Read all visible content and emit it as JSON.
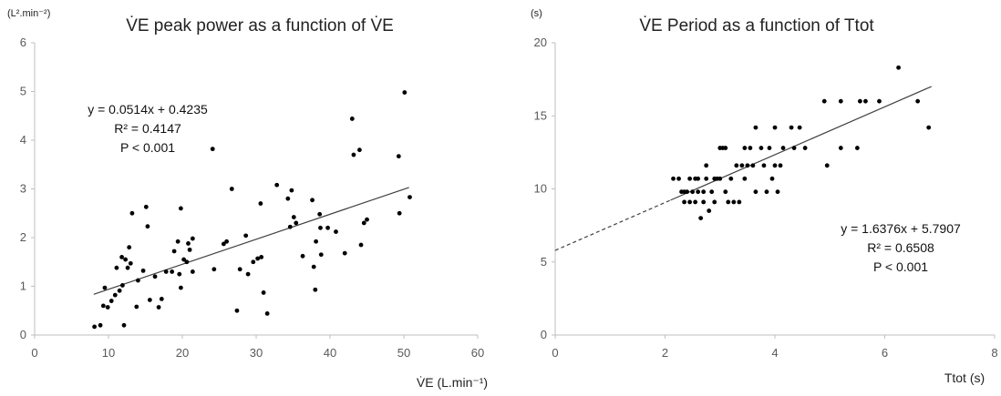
{
  "chart_data": [
    {
      "type": "scatter",
      "title": "V̇E peak power as a function of V̇E",
      "xlabel": "V̇E (L.min⁻¹)",
      "ylabel": "(L².min⁻²)",
      "xlim": [
        0,
        60
      ],
      "ylim": [
        0,
        6
      ],
      "xticks": [
        "0",
        "10",
        "20",
        "30",
        "40",
        "50",
        "60"
      ],
      "yticks": [
        "0",
        "1",
        "2",
        "3",
        "4",
        "5",
        "6"
      ],
      "grid": false,
      "trendline": {
        "slope": 0.0514,
        "intercept": 0.4235,
        "style": "solid",
        "x_range": [
          8,
          50.7
        ]
      },
      "annotation": [
        "y = 0.0514x + 0.4235",
        "R² = 0.4147",
        "P < 0.001"
      ],
      "points": [
        [
          8.1,
          0.17
        ],
        [
          8.9,
          0.2
        ],
        [
          9.3,
          0.6
        ],
        [
          9.5,
          0.97
        ],
        [
          9.9,
          0.57
        ],
        [
          10.4,
          0.7
        ],
        [
          10.9,
          0.82
        ],
        [
          11.1,
          1.38
        ],
        [
          11.5,
          0.91
        ],
        [
          11.8,
          1.6
        ],
        [
          11.9,
          1.02
        ],
        [
          12.1,
          0.2
        ],
        [
          12.3,
          1.55
        ],
        [
          12.6,
          1.38
        ],
        [
          12.8,
          1.8
        ],
        [
          13,
          1.47
        ],
        [
          13.2,
          2.5
        ],
        [
          13.8,
          0.58
        ],
        [
          14,
          1.12
        ],
        [
          14.7,
          1.32
        ],
        [
          15.1,
          2.63
        ],
        [
          15.3,
          2.23
        ],
        [
          15.6,
          0.72
        ],
        [
          16.3,
          1.2
        ],
        [
          16.8,
          0.57
        ],
        [
          17.2,
          0.74
        ],
        [
          17.8,
          1.3
        ],
        [
          18.6,
          1.3
        ],
        [
          18.9,
          1.72
        ],
        [
          19.4,
          1.92
        ],
        [
          19.6,
          1.25
        ],
        [
          19.8,
          0.97
        ],
        [
          19.8,
          2.6
        ],
        [
          20.2,
          1.55
        ],
        [
          20.6,
          1.5
        ],
        [
          20.8,
          1.88
        ],
        [
          21,
          1.75
        ],
        [
          21.4,
          1.3
        ],
        [
          21.4,
          1.98
        ],
        [
          24.1,
          3.82
        ],
        [
          24.3,
          1.35
        ],
        [
          25.6,
          1.87
        ],
        [
          26,
          1.92
        ],
        [
          26.7,
          3.0
        ],
        [
          27.4,
          0.5
        ],
        [
          27.8,
          1.35
        ],
        [
          28.6,
          2.04
        ],
        [
          28.9,
          1.25
        ],
        [
          29.6,
          1.5
        ],
        [
          30.2,
          1.57
        ],
        [
          30.6,
          2.7
        ],
        [
          30.7,
          1.6
        ],
        [
          31,
          0.87
        ],
        [
          31.5,
          0.44
        ],
        [
          32.8,
          3.08
        ],
        [
          34.3,
          2.8
        ],
        [
          34.6,
          2.22
        ],
        [
          34.8,
          2.97
        ],
        [
          35.1,
          2.42
        ],
        [
          35.4,
          2.3
        ],
        [
          36.3,
          1.62
        ],
        [
          37.6,
          2.77
        ],
        [
          37.8,
          1.4
        ],
        [
          38,
          0.93
        ],
        [
          38.1,
          1.92
        ],
        [
          38.6,
          2.48
        ],
        [
          38.7,
          2.2
        ],
        [
          38.8,
          1.65
        ],
        [
          39.7,
          2.2
        ],
        [
          40.8,
          2.12
        ],
        [
          42,
          1.68
        ],
        [
          43,
          4.44
        ],
        [
          43.2,
          3.7
        ],
        [
          44,
          3.8
        ],
        [
          44.2,
          1.85
        ],
        [
          44.6,
          2.3
        ],
        [
          45,
          2.37
        ],
        [
          49.3,
          3.67
        ],
        [
          49.4,
          2.5
        ],
        [
          50.1,
          4.98
        ],
        [
          50.8,
          2.83
        ]
      ]
    },
    {
      "type": "scatter",
      "title": "V̇E Period as  a function of Ttot",
      "xlabel": "Ttot (s)",
      "ylabel": "(s)",
      "xlim": [
        0,
        8
      ],
      "ylim": [
        0,
        20
      ],
      "xticks": [
        "0",
        "2",
        "4",
        "6",
        "8"
      ],
      "yticks": [
        "0",
        "5",
        "10",
        "15",
        "20"
      ],
      "grid": false,
      "trendline": {
        "slope": 1.6376,
        "intercept": 5.7907,
        "solid_x_range": [
          2.1,
          6.85
        ],
        "dashed_x_range": [
          0,
          2.1
        ]
      },
      "annotation": [
        "y = 1.6376x + 5.7907",
        "R² = 0.6508",
        "P < 0.001"
      ],
      "points": [
        [
          2.15,
          10.7
        ],
        [
          2.25,
          10.7
        ],
        [
          2.3,
          9.8
        ],
        [
          2.35,
          9.8
        ],
        [
          2.35,
          9.1
        ],
        [
          2.4,
          9.8
        ],
        [
          2.45,
          10.7
        ],
        [
          2.45,
          9.1
        ],
        [
          2.5,
          9.8
        ],
        [
          2.55,
          10.7
        ],
        [
          2.55,
          9.1
        ],
        [
          2.6,
          9.8
        ],
        [
          2.6,
          10.7
        ],
        [
          2.65,
          8.0
        ],
        [
          2.7,
          9.8
        ],
        [
          2.7,
          9.1
        ],
        [
          2.75,
          11.6
        ],
        [
          2.75,
          10.7
        ],
        [
          2.8,
          8.5
        ],
        [
          2.85,
          9.8
        ],
        [
          2.9,
          9.1
        ],
        [
          2.9,
          10.7
        ],
        [
          2.95,
          10.7
        ],
        [
          3.0,
          10.7
        ],
        [
          3.0,
          12.8
        ],
        [
          3.05,
          12.8
        ],
        [
          3.1,
          9.8
        ],
        [
          3.1,
          12.8
        ],
        [
          3.15,
          9.1
        ],
        [
          3.2,
          10.7
        ],
        [
          3.25,
          9.1
        ],
        [
          3.3,
          11.6
        ],
        [
          3.35,
          9.1
        ],
        [
          3.4,
          11.6
        ],
        [
          3.45,
          10.7
        ],
        [
          3.45,
          12.8
        ],
        [
          3.5,
          11.6
        ],
        [
          3.55,
          12.8
        ],
        [
          3.6,
          11.6
        ],
        [
          3.65,
          9.8
        ],
        [
          3.65,
          14.2
        ],
        [
          3.75,
          12.8
        ],
        [
          3.8,
          11.6
        ],
        [
          3.85,
          9.8
        ],
        [
          3.9,
          12.8
        ],
        [
          3.95,
          10.7
        ],
        [
          4.0,
          11.6
        ],
        [
          4.0,
          14.2
        ],
        [
          4.05,
          9.8
        ],
        [
          4.1,
          11.6
        ],
        [
          4.15,
          12.8
        ],
        [
          4.3,
          14.2
        ],
        [
          4.35,
          12.8
        ],
        [
          4.45,
          14.2
        ],
        [
          4.55,
          12.8
        ],
        [
          4.9,
          16.0
        ],
        [
          4.95,
          11.6
        ],
        [
          5.2,
          16.0
        ],
        [
          5.2,
          12.8
        ],
        [
          5.5,
          12.8
        ],
        [
          5.55,
          16.0
        ],
        [
          5.65,
          16.0
        ],
        [
          5.9,
          16.0
        ],
        [
          6.25,
          18.3
        ],
        [
          6.6,
          16.0
        ],
        [
          6.8,
          14.2
        ]
      ]
    }
  ]
}
